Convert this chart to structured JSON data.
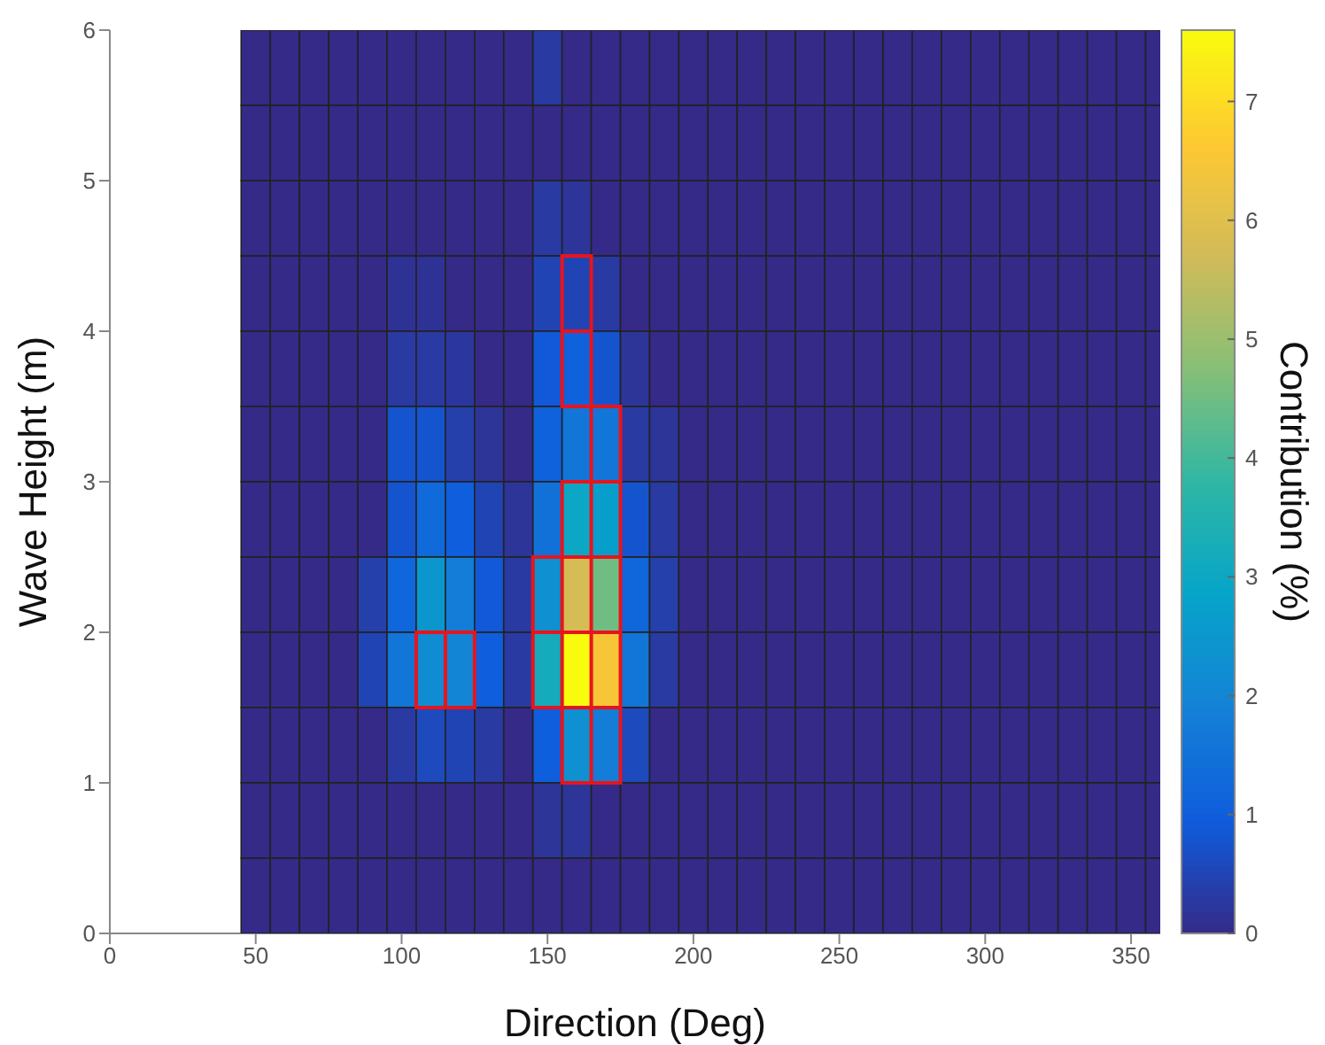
{
  "chart_data": {
    "type": "heatmap",
    "xlabel": "Direction (Deg)",
    "ylabel": "Wave Height (m)",
    "clabel": "Contribution (%)",
    "x": [
      50,
      60,
      70,
      80,
      90,
      100,
      110,
      120,
      130,
      140,
      150,
      160,
      170,
      180,
      190,
      200,
      210,
      220,
      230,
      240,
      250,
      260,
      270,
      280,
      290,
      300,
      310,
      320,
      330,
      340,
      350,
      360
    ],
    "xlim": [
      0,
      360
    ],
    "xticks": [
      0,
      50,
      100,
      150,
      200,
      250,
      300,
      350
    ],
    "ylim": [
      0,
      6
    ],
    "yticks": [
      0,
      1,
      2,
      3,
      4,
      5,
      6
    ],
    "clim": [
      0,
      7.6
    ],
    "cticks": [
      0,
      1,
      2,
      3,
      4,
      5,
      6,
      7
    ],
    "grid": false,
    "cells": [
      [
        0,
        0,
        0,
        0,
        0,
        0,
        0,
        0,
        0,
        0,
        0.3,
        0,
        0,
        0,
        0,
        0,
        0,
        0,
        0,
        0,
        0,
        0,
        0,
        0,
        0,
        0,
        0,
        0,
        0,
        0,
        0,
        0
      ],
      [
        0,
        0,
        0,
        0,
        0,
        0,
        0,
        0,
        0,
        0,
        0,
        0,
        0,
        0,
        0,
        0,
        0,
        0,
        0,
        0,
        0,
        0,
        0,
        0,
        0,
        0,
        0,
        0,
        0,
        0,
        0,
        0
      ],
      [
        0,
        0,
        0,
        0,
        0,
        0,
        0,
        0,
        0,
        0,
        0.3,
        0.2,
        0,
        0,
        0,
        0,
        0,
        0,
        0,
        0,
        0,
        0,
        0,
        0,
        0,
        0,
        0,
        0,
        0,
        0,
        0,
        0
      ],
      [
        0,
        0,
        0,
        0,
        0,
        0.15,
        0.15,
        0,
        0,
        0,
        0.5,
        0.5,
        0.3,
        0,
        0,
        0,
        0,
        0,
        0,
        0,
        0,
        0,
        0,
        0,
        0,
        0,
        0,
        0,
        0,
        0,
        0,
        0
      ],
      [
        0,
        0,
        0,
        0,
        0,
        0.3,
        0.3,
        0.25,
        0,
        0,
        0.9,
        1.1,
        0.8,
        0.2,
        0,
        0,
        0,
        0,
        0,
        0,
        0,
        0,
        0,
        0,
        0,
        0,
        0,
        0,
        0,
        0,
        0,
        0
      ],
      [
        0,
        0,
        0,
        0,
        0,
        0.8,
        0.8,
        0.4,
        0.2,
        0,
        1.1,
        1.6,
        1.6,
        0.3,
        0.2,
        0,
        0,
        0,
        0,
        0,
        0,
        0,
        0,
        0,
        0,
        0,
        0,
        0,
        0,
        0,
        0,
        0
      ],
      [
        0,
        0,
        0,
        0,
        0,
        0.8,
        1.3,
        1,
        0.5,
        0.2,
        1.5,
        3,
        2.7,
        0.8,
        0.3,
        0,
        0,
        0,
        0,
        0,
        0,
        0,
        0,
        0,
        0,
        0,
        0,
        0,
        0,
        0,
        0,
        0
      ],
      [
        0,
        0,
        0,
        0,
        0.4,
        1.2,
        2.5,
        1.8,
        0.9,
        0.3,
        2.3,
        5.8,
        4.5,
        1.2,
        0.4,
        0,
        0,
        0,
        0,
        0,
        0,
        0,
        0,
        0,
        0,
        0,
        0,
        0,
        0,
        0,
        0,
        0
      ],
      [
        0,
        0,
        0,
        0,
        0.5,
        1.6,
        2.2,
        2,
        1,
        0.3,
        3.2,
        7.6,
        6.5,
        1.6,
        0.3,
        0,
        0,
        0,
        0,
        0,
        0,
        0,
        0,
        0,
        0,
        0,
        0,
        0,
        0,
        0,
        0,
        0
      ],
      [
        0,
        0,
        0,
        0,
        0,
        0.3,
        0.6,
        0.5,
        0.3,
        0,
        1,
        2.3,
        1.8,
        0.6,
        0,
        0,
        0,
        0,
        0,
        0,
        0,
        0,
        0,
        0,
        0,
        0,
        0,
        0,
        0,
        0,
        0,
        0
      ],
      [
        0,
        0,
        0,
        0,
        0,
        0,
        0,
        0,
        0,
        0,
        0.2,
        0.2,
        0,
        0,
        0,
        0,
        0,
        0,
        0,
        0,
        0,
        0,
        0,
        0,
        0,
        0,
        0,
        0,
        0,
        0,
        0,
        0
      ],
      [
        0,
        0,
        0,
        0,
        0,
        0,
        0,
        0,
        0,
        0,
        0,
        0,
        0,
        0,
        0,
        0,
        0,
        0,
        0,
        0,
        0,
        0,
        0,
        0,
        0,
        0,
        0,
        0,
        0,
        0,
        0,
        0
      ]
    ]
  }
}
